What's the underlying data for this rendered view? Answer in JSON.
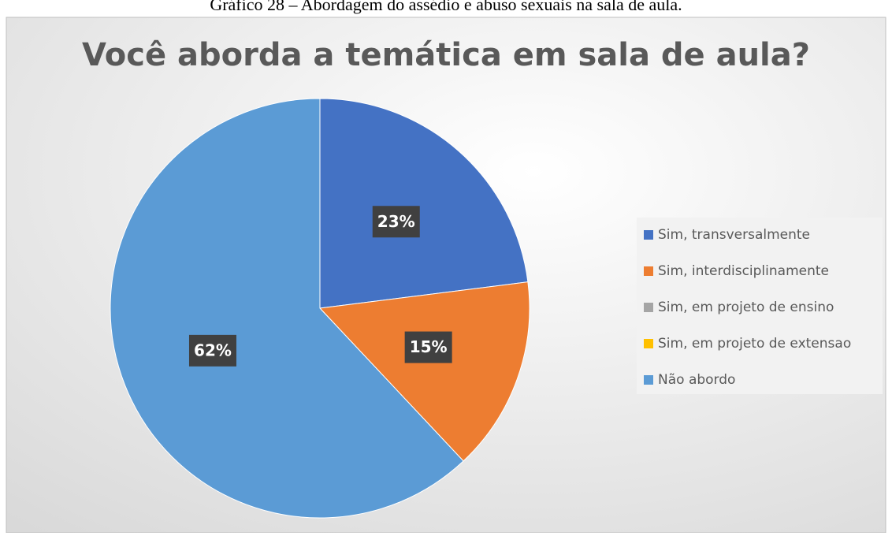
{
  "caption": "Gráfico 28 – Abordagem do assédio e abuso sexuais na sala de aula.",
  "chart_data": {
    "type": "pie",
    "title": "Você aborda a temática em sala de aula?",
    "categories": [
      "Sim, transversalmente",
      "Sim, interdisciplinamente",
      "Sim, em projeto de ensino",
      "Sim, em projeto de extensao",
      "Não abordo"
    ],
    "values": [
      23,
      15,
      0,
      0,
      62
    ],
    "value_labels": [
      "23%",
      "15%",
      null,
      null,
      "62%"
    ],
    "colors": [
      "#4472c4",
      "#ed7d31",
      "#a5a5a5",
      "#ffc000",
      "#5b9bd5"
    ],
    "legend": "right"
  }
}
